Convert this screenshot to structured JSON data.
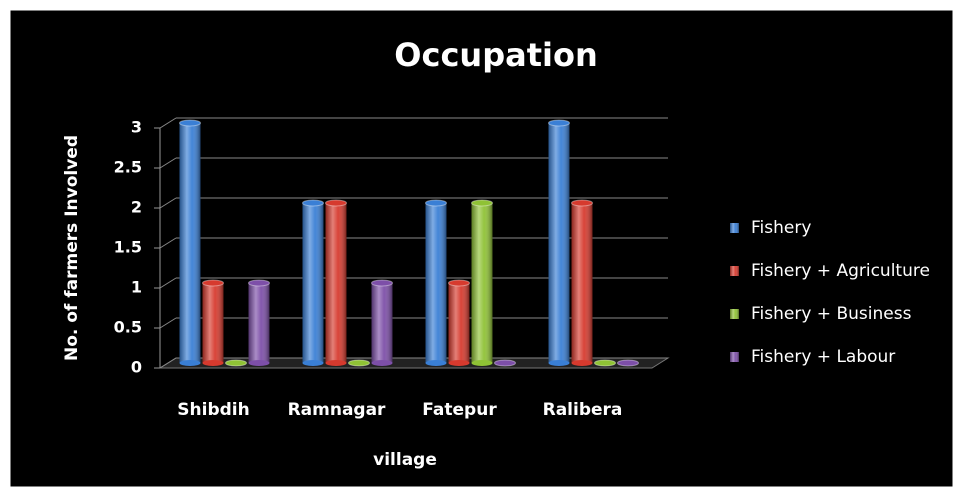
{
  "chart_data": {
    "type": "bar",
    "title": "Occupation",
    "categories": [
      "Shibdih",
      "Ramnagar",
      "Fatepur",
      "Ralibera"
    ],
    "series": [
      {
        "name": "Fishery",
        "color": "#3a7fd5",
        "values": [
          3,
          2,
          2,
          3
        ]
      },
      {
        "name": "Fishery + Agriculture",
        "color": "#d63a2e",
        "values": [
          1,
          2,
          1,
          2
        ]
      },
      {
        "name": "Fishery + Business",
        "color": "#8fc235",
        "values": [
          0,
          0,
          2,
          0
        ]
      },
      {
        "name": "Fishery + Labour",
        "color": "#7d4fa8",
        "values": [
          1,
          1,
          0,
          0
        ]
      }
    ],
    "x_label": "village",
    "y_label": "No. of farmers Involved",
    "ylim": [
      0,
      3
    ],
    "yticks": [
      0,
      0.5,
      1,
      1.5,
      2,
      2.5,
      3
    ],
    "grid": true,
    "legend": "right"
  }
}
